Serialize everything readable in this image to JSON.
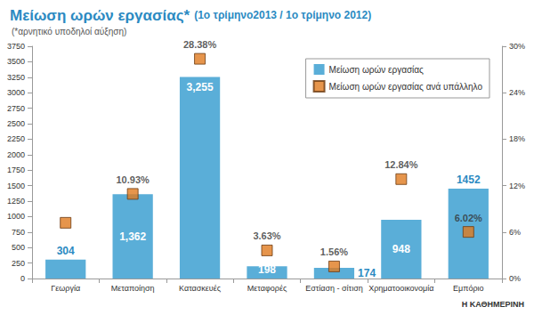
{
  "chart_data": {
    "type": "bar",
    "title": "Μείωση ωρών εργασίας* (1ο τρίμηνο2013 / 1ο τρίμηνο 2012)",
    "subtitle": "(*αρνητικό υποδηλοί αύξηση)",
    "source": "Η ΚΑΘΗΜΕΡΙΝΗ",
    "categories": [
      "Γεωργία",
      "Μεταποίηση",
      "Κατασκευές",
      "Μεταφορές",
      "Εστίαση - σίτιση",
      "Χρηματοοικονομία",
      "Εμπόριο"
    ],
    "series": [
      {
        "name": "Μείωση ωρών εργασίας",
        "type": "bar",
        "color": "#5aaed8",
        "values": [
          304,
          1362,
          3255,
          198,
          174,
          948,
          1452
        ],
        "value_labels": [
          "304",
          "1,362",
          "3,255",
          "198",
          "174",
          "948",
          "1452"
        ]
      },
      {
        "name": "Μείωση ωρών εργασίας ανά υπάλληλο",
        "type": "scatter",
        "axis": "y2",
        "color": "#e07a1f",
        "marker": "square",
        "values": [
          7.2,
          10.93,
          28.38,
          3.63,
          1.56,
          12.84,
          6.02
        ],
        "value_labels": [
          null,
          "10.93%",
          "28.38%",
          "3.63%",
          "1.56%",
          "12.84%",
          "6.02%"
        ]
      }
    ],
    "ylim": [
      0,
      3750
    ],
    "yticks": [
      0,
      250,
      500,
      750,
      1000,
      1250,
      1500,
      1750,
      2000,
      2250,
      2500,
      2750,
      3000,
      3250,
      3500,
      3750
    ],
    "y2lim": [
      0,
      30
    ],
    "y2ticks": [
      {
        "value": 0,
        "label": "0%"
      },
      {
        "value": 6,
        "label": "6%"
      },
      {
        "value": 12,
        "label": "12%"
      },
      {
        "value": 18,
        "label": "18%"
      },
      {
        "value": 24,
        "label": "24%"
      },
      {
        "value": 30,
        "label": "30%"
      }
    ],
    "grid": false,
    "legend": "top right",
    "data_labels": true
  }
}
